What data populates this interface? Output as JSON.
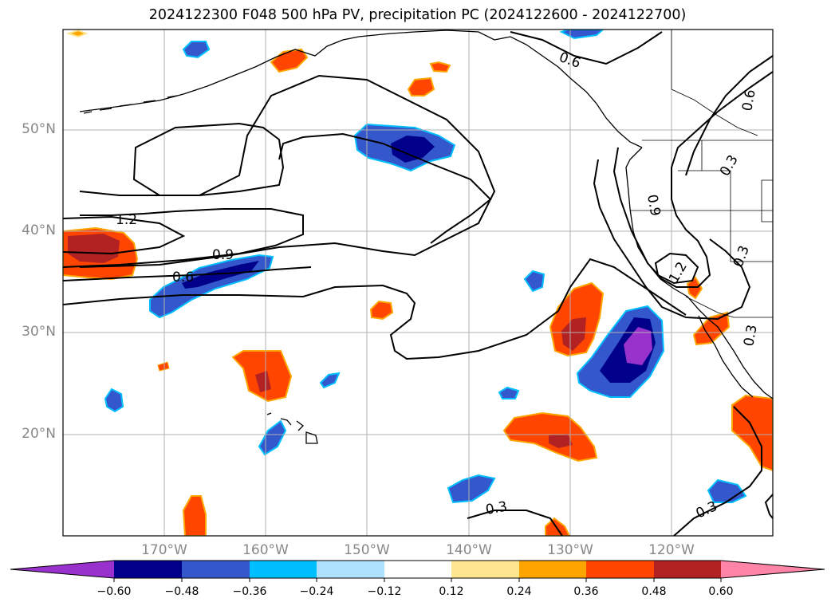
{
  "title": "2024122300 F048 500 hPa PV, precipitation PC (2024122600 - 2024122700)",
  "latitude_labels": [
    "50°N",
    "40°N",
    "30°N",
    "20°N"
  ],
  "longitude_labels": [
    "170°W",
    "160°W",
    "150°W",
    "140°W",
    "130°W",
    "120°W"
  ],
  "contour_labels": [
    "1.2",
    "0.9",
    "0.6",
    "0.6",
    "0.6",
    "0.9",
    "1.2",
    "0.3",
    "0.3",
    "0.3",
    "0.3",
    "0.3"
  ],
  "colorbar": {
    "tick_labels": [
      "−0.60",
      "−0.48",
      "−0.36",
      "−0.24",
      "−0.12",
      "0.12",
      "0.24",
      "0.36",
      "0.48",
      "0.60"
    ],
    "colors": [
      "#9932cc",
      "#00008b",
      "#3458cc",
      "#00bfff",
      "#aee0ff",
      "#ffffff",
      "#ffe58f",
      "#ffa500",
      "#ff4500",
      "#b22222",
      "#ff85a8"
    ]
  },
  "colors": {
    "purple": "#9932cc",
    "navy": "#00008b",
    "royal": "#3458cc",
    "sky": "#00bfff",
    "pale_blue": "#aee0ff",
    "pale_yellow": "#ffe58f",
    "orange": "#ffa500",
    "red_orange": "#ff4500",
    "dark_red": "#b22222",
    "pink": "#ff85a8",
    "grid": "#b0b0b0",
    "contour": "#000000",
    "axis_label": "#888888"
  },
  "icons": [
    "colorbar-low-arrow",
    "colorbar-high-arrow"
  ]
}
